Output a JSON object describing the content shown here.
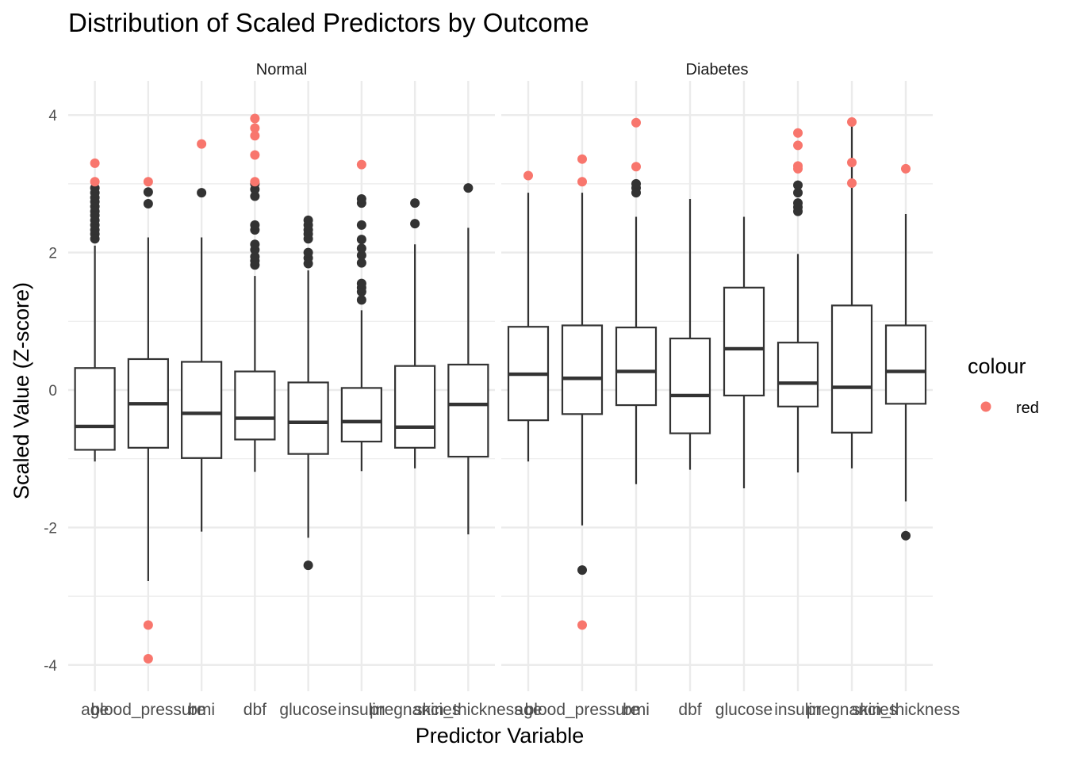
{
  "chart_data": {
    "type": "boxplot",
    "title": "Distribution of Scaled Predictors by Outcome",
    "xlabel": "Predictor Variable",
    "ylabel": "Scaled Value (Z-score)",
    "ylim": [
      -4.4,
      4.4
    ],
    "yticks": [
      4,
      2,
      0,
      -2,
      -4
    ],
    "ytick_labels": [
      "4",
      "2",
      "0",
      "-2",
      "-4"
    ],
    "categories": [
      "age",
      "blood_pressure",
      "bmi",
      "dbf",
      "glucose",
      "insulin",
      "pregnancies",
      "skin_thickness"
    ],
    "grid": true,
    "legend": {
      "title": "colour",
      "placement": "right",
      "entries": [
        {
          "label": "red",
          "color": "#F8766D"
        }
      ]
    },
    "colors": {
      "box": "#333333",
      "outlier": "#333333",
      "highlight": "#F8766D",
      "grid": "#ebebeb"
    },
    "facets": [
      {
        "label": "Normal",
        "boxes": [
          {
            "category": "age",
            "q1": -0.87,
            "median": -0.53,
            "q3": 0.32,
            "whisker_low": -1.04,
            "whisker_high": 2.1,
            "outliers": [
              2.2,
              2.27,
              2.33,
              2.4,
              2.47,
              2.54,
              2.6,
              2.67,
              2.74,
              2.8,
              2.87,
              2.94
            ],
            "red": [
              3.3,
              3.03
            ]
          },
          {
            "category": "blood_pressure",
            "q1": -0.84,
            "median": -0.2,
            "q3": 0.45,
            "whisker_low": -2.78,
            "whisker_high": 2.22,
            "outliers": [
              2.71,
              2.88
            ],
            "red": [
              3.03,
              -3.42,
              -3.91
            ]
          },
          {
            "category": "bmi",
            "q1": -0.99,
            "median": -0.34,
            "q3": 0.41,
            "whisker_low": -2.06,
            "whisker_high": 2.22,
            "outliers": [
              2.87
            ],
            "red": [
              3.58
            ]
          },
          {
            "category": "dbf",
            "q1": -0.72,
            "median": -0.41,
            "q3": 0.27,
            "whisker_low": -1.19,
            "whisker_high": 1.66,
            "outliers": [
              1.82,
              1.88,
              1.94,
              2.04,
              2.12,
              2.33,
              2.4,
              2.82,
              2.92,
              3.0
            ],
            "red": [
              3.95,
              3.81,
              3.7,
              3.42,
              3.03
            ]
          },
          {
            "category": "glucose",
            "q1": -0.93,
            "median": -0.47,
            "q3": 0.11,
            "whisker_low": -2.15,
            "whisker_high": 1.74,
            "outliers": [
              1.84,
              1.92,
              2.0,
              2.2,
              2.27,
              2.33,
              2.4,
              2.47,
              -2.55
            ],
            "red": []
          },
          {
            "category": "insulin",
            "q1": -0.75,
            "median": -0.46,
            "q3": 0.03,
            "whisker_low": -1.18,
            "whisker_high": 1.16,
            "outliers": [
              1.31,
              1.43,
              1.49,
              1.55,
              1.85,
              1.96,
              2.06,
              2.19,
              2.4,
              2.72,
              2.78
            ],
            "red": [
              3.28
            ]
          },
          {
            "category": "pregnancies",
            "q1": -0.84,
            "median": -0.54,
            "q3": 0.35,
            "whisker_low": -1.14,
            "whisker_high": 2.12,
            "outliers": [
              2.42,
              2.72
            ],
            "red": []
          },
          {
            "category": "skin_thickness",
            "q1": -0.97,
            "median": -0.21,
            "q3": 0.37,
            "whisker_low": -2.1,
            "whisker_high": 2.36,
            "outliers": [
              2.94
            ],
            "red": []
          }
        ]
      },
      {
        "label": "Diabetes",
        "boxes": [
          {
            "category": "age",
            "q1": -0.44,
            "median": 0.23,
            "q3": 0.92,
            "whisker_low": -1.04,
            "whisker_high": 2.87,
            "outliers": [],
            "red": [
              3.12
            ]
          },
          {
            "category": "blood_pressure",
            "q1": -0.35,
            "median": 0.17,
            "q3": 0.94,
            "whisker_low": -1.97,
            "whisker_high": 2.87,
            "outliers": [
              -2.62
            ],
            "red": [
              3.36,
              3.03,
              -3.42
            ]
          },
          {
            "category": "bmi",
            "q1": -0.22,
            "median": 0.27,
            "q3": 0.91,
            "whisker_low": -1.37,
            "whisker_high": 2.52,
            "outliers": [
              2.87,
              2.94,
              3.0
            ],
            "red": [
              3.89,
              3.25
            ]
          },
          {
            "category": "dbf",
            "q1": -0.63,
            "median": -0.08,
            "q3": 0.75,
            "whisker_low": -1.16,
            "whisker_high": 2.78,
            "outliers": [],
            "red": []
          },
          {
            "category": "glucose",
            "q1": -0.08,
            "median": 0.6,
            "q3": 1.49,
            "whisker_low": -1.43,
            "whisker_high": 2.52,
            "outliers": [],
            "red": []
          },
          {
            "category": "insulin",
            "q1": -0.24,
            "median": 0.1,
            "q3": 0.69,
            "whisker_low": -1.2,
            "whisker_high": 1.98,
            "outliers": [
              2.6,
              2.66,
              2.72,
              2.87,
              2.98
            ],
            "red": [
              3.74,
              3.56,
              3.26,
              3.22
            ]
          },
          {
            "category": "pregnancies",
            "q1": -0.62,
            "median": 0.04,
            "q3": 1.23,
            "whisker_low": -1.14,
            "whisker_high": 3.88,
            "outliers": [],
            "red": [
              3.9,
              3.31,
              3.01
            ]
          },
          {
            "category": "skin_thickness",
            "q1": -0.2,
            "median": 0.27,
            "q3": 0.94,
            "whisker_low": -1.62,
            "whisker_high": 2.56,
            "outliers": [
              -2.12
            ],
            "red": [
              3.22
            ]
          }
        ]
      }
    ]
  }
}
